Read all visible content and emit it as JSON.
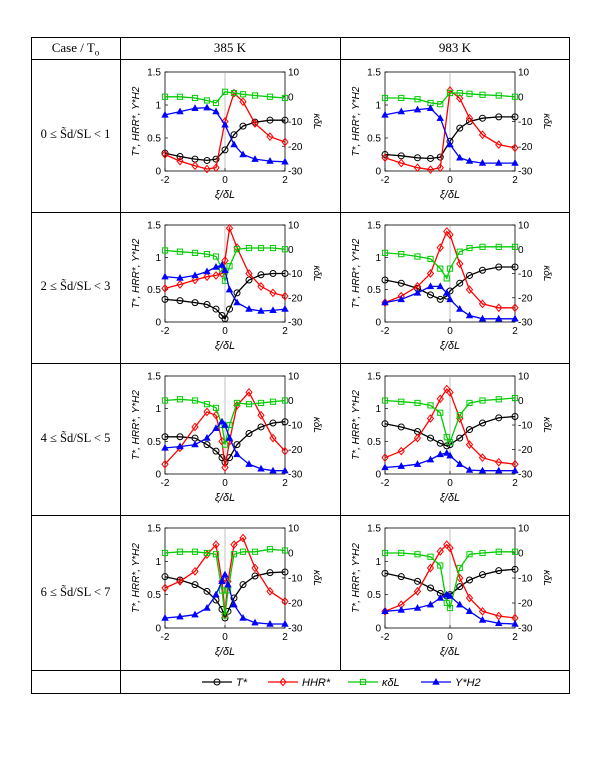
{
  "table": {
    "header_case": "Case / T",
    "header_case_sub": "o",
    "header_col1": "385 K",
    "header_col2": "983 K"
  },
  "rows": [
    {
      "label": "0 ≤ S̃d/SL < 1"
    },
    {
      "label": "2 ≤ S̃d/SL < 3"
    },
    {
      "label": "4 ≤ S̃d/SL < 5"
    },
    {
      "label": "6 ≤ S̃d/SL < 7"
    }
  ],
  "axis_text": {
    "xlabel": "ξ/δL",
    "ylabel_left": "T*, HRR*, Y*H2",
    "ylabel_right": "κδL",
    "xticks": [
      "-2",
      "0",
      "2"
    ],
    "yticks_left": [
      "0",
      "0.5",
      "1",
      "1.5"
    ],
    "yticks_right": [
      "-30",
      "-20",
      "-10",
      "0",
      "10"
    ]
  },
  "legend": {
    "items": [
      {
        "key": "T",
        "label": "T*",
        "color": "#000000",
        "marker": "circle"
      },
      {
        "key": "H",
        "label": "HHR*",
        "color": "#ff0000",
        "marker": "diamond"
      },
      {
        "key": "K",
        "label": "κδL",
        "color": "#00cc00",
        "marker": "square"
      },
      {
        "key": "Y",
        "label": "Y*H2",
        "color": "#0000ff",
        "marker": "triangle"
      }
    ]
  },
  "chart_data": [
    {
      "type": "line",
      "panel": "385 K, 0–1",
      "xlim": [
        -2,
        2
      ],
      "ylim": [
        0,
        1.5
      ],
      "ylim_right": [
        -30,
        10
      ],
      "x": [
        -2,
        -1.5,
        -1,
        -0.6,
        -0.3,
        0,
        0.3,
        0.6,
        1,
        1.5,
        2
      ],
      "series": [
        {
          "name": "T*",
          "axis": "left",
          "values": [
            0.27,
            0.22,
            0.18,
            0.16,
            0.18,
            0.32,
            0.55,
            0.68,
            0.74,
            0.77,
            0.77
          ]
        },
        {
          "name": "HHR*",
          "axis": "left",
          "values": [
            0.25,
            0.15,
            0.08,
            0.03,
            0.05,
            0.75,
            1.18,
            1.05,
            0.72,
            0.52,
            0.44
          ]
        },
        {
          "name": "κδL",
          "axis": "right",
          "values": [
            0,
            0,
            -0.5,
            -1.5,
            -2.5,
            2,
            1.5,
            1,
            0.5,
            0,
            -0.5
          ]
        },
        {
          "name": "Y*H2",
          "axis": "left",
          "values": [
            0.85,
            0.9,
            0.95,
            0.96,
            0.9,
            0.7,
            0.4,
            0.25,
            0.18,
            0.15,
            0.14
          ]
        }
      ]
    },
    {
      "type": "line",
      "panel": "983 K, 0–1",
      "xlim": [
        -2,
        2
      ],
      "ylim": [
        0,
        1.5
      ],
      "ylim_right": [
        -30,
        10
      ],
      "x": [
        -2,
        -1.5,
        -1,
        -0.6,
        -0.3,
        0,
        0.3,
        0.6,
        1,
        1.5,
        2
      ],
      "series": [
        {
          "name": "T*",
          "axis": "left",
          "values": [
            0.25,
            0.23,
            0.2,
            0.19,
            0.21,
            0.45,
            0.65,
            0.75,
            0.8,
            0.82,
            0.82
          ]
        },
        {
          "name": "HHR*",
          "axis": "left",
          "values": [
            0.2,
            0.12,
            0.05,
            0.02,
            0.05,
            1.22,
            1.1,
            0.8,
            0.55,
            0.4,
            0.35
          ]
        },
        {
          "name": "κδL",
          "axis": "right",
          "values": [
            -0.5,
            -0.5,
            -1,
            -2.5,
            -3,
            1.5,
            1.5,
            1.2,
            0.8,
            0.5,
            0
          ]
        },
        {
          "name": "Y*H2",
          "axis": "left",
          "values": [
            0.85,
            0.9,
            0.93,
            0.95,
            0.8,
            0.4,
            0.2,
            0.15,
            0.12,
            0.12,
            0.12
          ]
        }
      ]
    },
    {
      "type": "line",
      "panel": "385 K, 2–3",
      "xlim": [
        -2,
        2
      ],
      "ylim": [
        0,
        1.5
      ],
      "ylim_right": [
        -30,
        10
      ],
      "x": [
        -2,
        -1.5,
        -1,
        -0.6,
        -0.3,
        -0.1,
        0,
        0.15,
        0.4,
        0.8,
        1.2,
        1.6,
        2
      ],
      "series": [
        {
          "name": "T*",
          "axis": "left",
          "values": [
            0.35,
            0.33,
            0.3,
            0.27,
            0.2,
            0.1,
            0.05,
            0.2,
            0.45,
            0.65,
            0.73,
            0.75,
            0.75
          ]
        },
        {
          "name": "HHR*",
          "axis": "left",
          "values": [
            0.52,
            0.58,
            0.65,
            0.7,
            0.72,
            0.75,
            0.95,
            1.45,
            1.15,
            0.75,
            0.55,
            0.45,
            0.4
          ]
        },
        {
          "name": "κδL",
          "axis": "right",
          "values": [
            -0.5,
            -1,
            -1.5,
            -2,
            -3,
            -8,
            -13,
            -7,
            0,
            0.5,
            0.5,
            0.5,
            0
          ]
        },
        {
          "name": "Y*H2",
          "axis": "left",
          "values": [
            0.7,
            0.68,
            0.72,
            0.78,
            0.85,
            0.88,
            0.8,
            0.5,
            0.3,
            0.2,
            0.17,
            0.18,
            0.2
          ]
        }
      ]
    },
    {
      "type": "line",
      "panel": "983 K, 2–3",
      "xlim": [
        -2,
        2
      ],
      "ylim": [
        0,
        1.5
      ],
      "ylim_right": [
        -30,
        10
      ],
      "x": [
        -2,
        -1.5,
        -1,
        -0.6,
        -0.3,
        -0.1,
        0,
        0.3,
        0.6,
        1,
        1.5,
        2
      ],
      "series": [
        {
          "name": "T*",
          "axis": "left",
          "values": [
            0.65,
            0.6,
            0.52,
            0.42,
            0.35,
            0.4,
            0.48,
            0.6,
            0.72,
            0.8,
            0.85,
            0.85
          ]
        },
        {
          "name": "HHR*",
          "axis": "left",
          "values": [
            0.3,
            0.4,
            0.55,
            0.75,
            1.15,
            1.4,
            1.35,
            0.9,
            0.5,
            0.28,
            0.22,
            0.22
          ]
        },
        {
          "name": "κδL",
          "axis": "right",
          "values": [
            -1.5,
            -2,
            -3,
            -4,
            -8,
            -12,
            -8,
            -1,
            0.5,
            1,
            1,
            1
          ]
        },
        {
          "name": "Y*H2",
          "axis": "left",
          "values": [
            0.3,
            0.35,
            0.45,
            0.55,
            0.55,
            0.45,
            0.35,
            0.2,
            0.1,
            0.05,
            0.05,
            0.05
          ]
        }
      ]
    },
    {
      "type": "line",
      "panel": "385 K, 4–5",
      "xlim": [
        -2,
        2
      ],
      "ylim": [
        0,
        1.5
      ],
      "ylim_right": [
        -30,
        10
      ],
      "x": [
        -2,
        -1.5,
        -1,
        -0.6,
        -0.3,
        -0.1,
        0,
        0.15,
        0.4,
        0.8,
        1.2,
        1.6,
        2
      ],
      "series": [
        {
          "name": "T*",
          "axis": "left",
          "values": [
            0.57,
            0.57,
            0.55,
            0.45,
            0.35,
            0.25,
            0.18,
            0.25,
            0.45,
            0.62,
            0.72,
            0.78,
            0.8
          ]
        },
        {
          "name": "HHR*",
          "axis": "left",
          "values": [
            0.15,
            0.4,
            0.72,
            0.95,
            0.9,
            0.5,
            0.1,
            0.5,
            1.05,
            1.25,
            0.9,
            0.55,
            0.35
          ]
        },
        {
          "name": "κδL",
          "axis": "right",
          "values": [
            0,
            0.5,
            0,
            -1.5,
            -3,
            -10,
            -18,
            -10,
            -1,
            -1.5,
            -1,
            -0.5,
            0
          ]
        },
        {
          "name": "Y*H2",
          "axis": "left",
          "values": [
            0.4,
            0.42,
            0.45,
            0.55,
            0.7,
            0.8,
            0.75,
            0.55,
            0.3,
            0.15,
            0.08,
            0.05,
            0.05
          ]
        }
      ]
    },
    {
      "type": "line",
      "panel": "983 K, 4–5",
      "xlim": [
        -2,
        2
      ],
      "ylim": [
        0,
        1.5
      ],
      "ylim_right": [
        -30,
        10
      ],
      "x": [
        -2,
        -1.5,
        -1,
        -0.6,
        -0.3,
        -0.1,
        0,
        0.3,
        0.6,
        1,
        1.5,
        2
      ],
      "series": [
        {
          "name": "T*",
          "axis": "left",
          "values": [
            0.77,
            0.72,
            0.65,
            0.55,
            0.47,
            0.43,
            0.45,
            0.55,
            0.68,
            0.78,
            0.86,
            0.88
          ]
        },
        {
          "name": "HHR*",
          "axis": "left",
          "values": [
            0.25,
            0.35,
            0.55,
            0.85,
            1.15,
            1.3,
            1.25,
            0.85,
            0.45,
            0.25,
            0.18,
            0.15
          ]
        },
        {
          "name": "κδL",
          "axis": "right",
          "values": [
            0,
            -0.5,
            -1,
            -2,
            -5,
            -15,
            -17,
            -6,
            -1,
            0,
            0.5,
            1
          ]
        },
        {
          "name": "Y*H2",
          "axis": "left",
          "values": [
            0.1,
            0.12,
            0.15,
            0.22,
            0.3,
            0.32,
            0.28,
            0.15,
            0.06,
            0.05,
            0.05,
            0.05
          ]
        }
      ]
    },
    {
      "type": "line",
      "panel": "385 K, 6–7",
      "xlim": [
        -2,
        2
      ],
      "ylim": [
        0,
        1.5
      ],
      "ylim_right": [
        -30,
        10
      ],
      "x": [
        -2,
        -1.5,
        -1,
        -0.6,
        -0.3,
        -0.1,
        0,
        0.1,
        0.3,
        0.6,
        1,
        1.5,
        2
      ],
      "series": [
        {
          "name": "T*",
          "axis": "left",
          "values": [
            0.77,
            0.72,
            0.65,
            0.55,
            0.42,
            0.28,
            0.15,
            0.25,
            0.45,
            0.65,
            0.78,
            0.83,
            0.84
          ]
        },
        {
          "name": "HHR*",
          "axis": "left",
          "values": [
            0.6,
            0.7,
            0.85,
            1.1,
            1.25,
            0.7,
            0.2,
            0.7,
            1.25,
            1.35,
            0.9,
            0.55,
            0.4
          ]
        },
        {
          "name": "κδL",
          "axis": "right",
          "values": [
            0,
            0.5,
            0.5,
            0,
            -0.5,
            -15,
            -25,
            -15,
            -0.5,
            0.5,
            0.5,
            1.5,
            1
          ]
        },
        {
          "name": "Y*H2",
          "axis": "left",
          "values": [
            0.15,
            0.17,
            0.2,
            0.3,
            0.5,
            0.7,
            0.8,
            0.65,
            0.35,
            0.15,
            0.08,
            0.06,
            0.06
          ]
        }
      ]
    },
    {
      "type": "line",
      "panel": "983 K, 6–7",
      "xlim": [
        -2,
        2
      ],
      "ylim": [
        0,
        1.5
      ],
      "ylim_right": [
        -30,
        10
      ],
      "x": [
        -2,
        -1.5,
        -1,
        -0.6,
        -0.3,
        -0.1,
        0,
        0.3,
        0.6,
        1,
        1.5,
        2
      ],
      "series": [
        {
          "name": "T*",
          "axis": "left",
          "values": [
            0.82,
            0.77,
            0.7,
            0.6,
            0.52,
            0.48,
            0.5,
            0.62,
            0.72,
            0.8,
            0.86,
            0.88
          ]
        },
        {
          "name": "HHR*",
          "axis": "left",
          "values": [
            0.25,
            0.35,
            0.55,
            0.9,
            1.15,
            1.25,
            1.2,
            0.75,
            0.45,
            0.25,
            0.18,
            0.15
          ]
        },
        {
          "name": "κδL",
          "axis": "right",
          "values": [
            0,
            0,
            -0.5,
            -1.5,
            -5,
            -20,
            -22,
            -6,
            -0.5,
            0,
            0.5,
            0.5
          ]
        },
        {
          "name": "Y*H2",
          "axis": "left",
          "values": [
            0.25,
            0.27,
            0.3,
            0.35,
            0.45,
            0.5,
            0.48,
            0.35,
            0.25,
            0.12,
            0.07,
            0.06
          ]
        }
      ]
    }
  ]
}
